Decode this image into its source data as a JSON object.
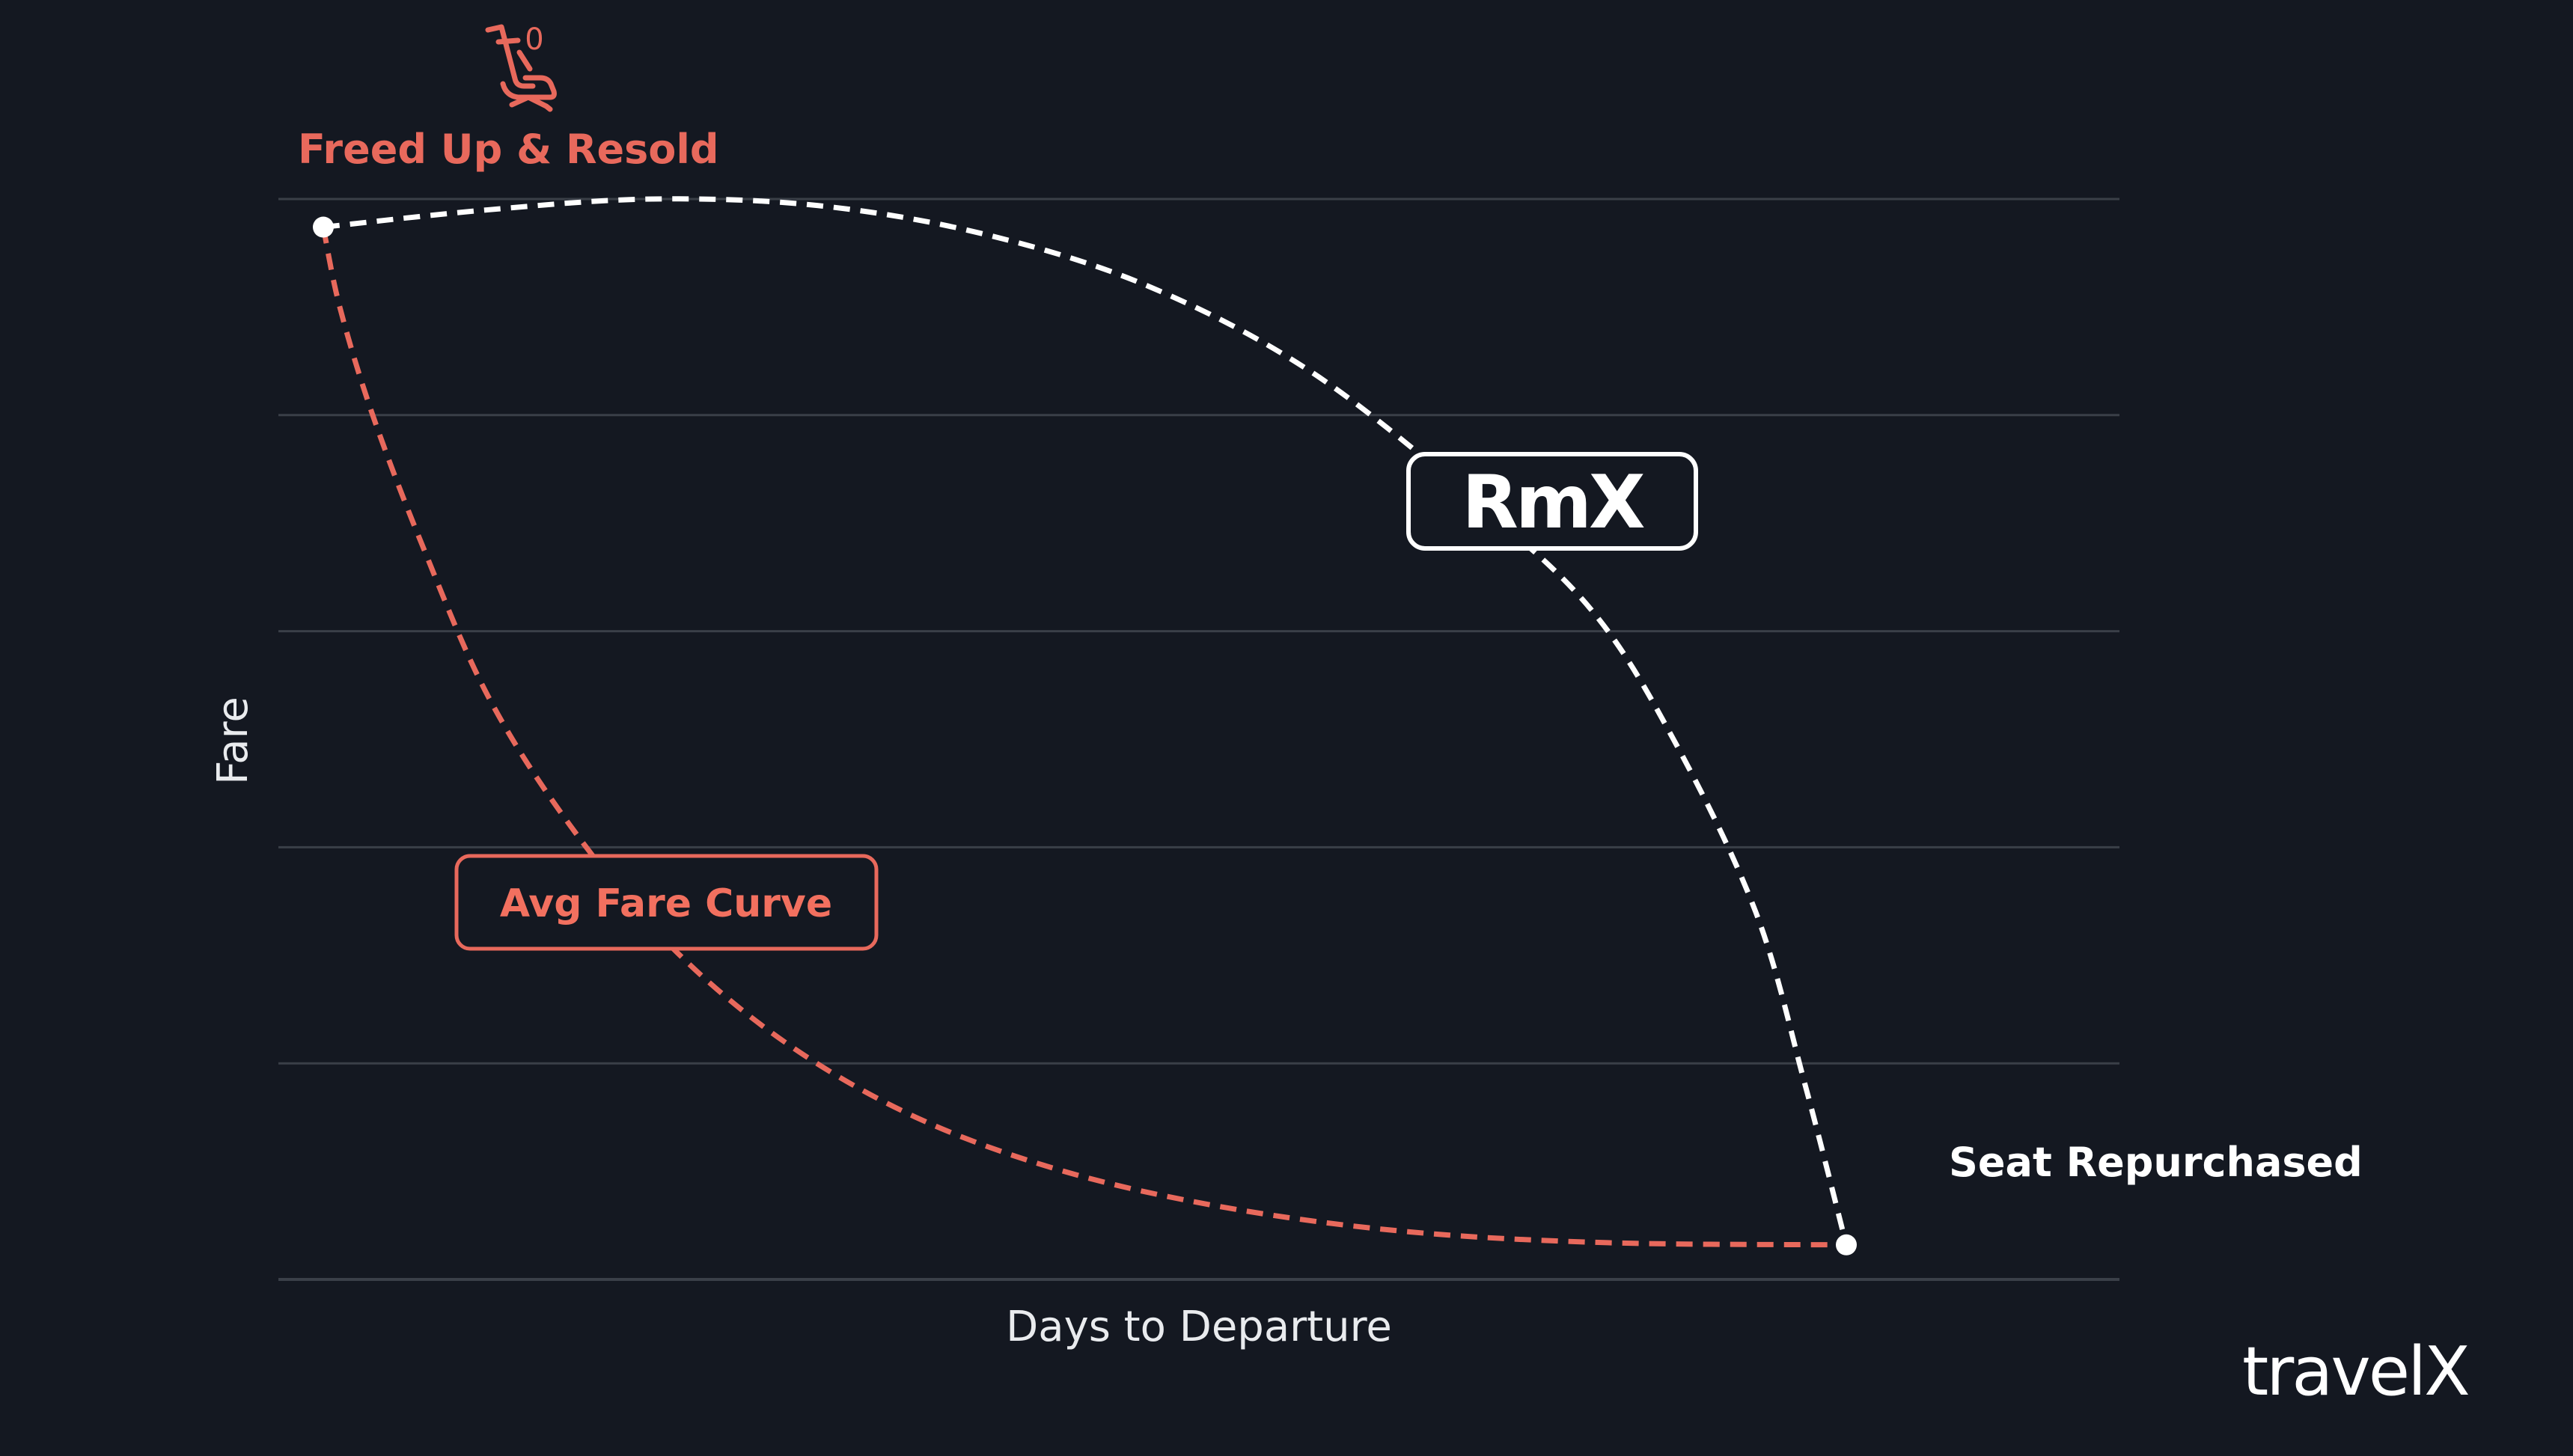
{
  "colors": {
    "background": "#141821",
    "grid": "#3a3f48",
    "accent_red": "#e8695c",
    "rmx_curve": "#ffffff"
  },
  "icons": {
    "seat": "airline-seat-icon"
  },
  "seat_badge_count": "0",
  "callouts": {
    "start": "Freed Up & Resold",
    "end": "Seat Repurchased"
  },
  "rmx_badge": {
    "label": "RmX"
  },
  "avg_label": "Avg Fare Curve",
  "logo": "travelX",
  "chart_data": {
    "type": "line",
    "xlabel": "Days to Departure",
    "ylabel": "Fare",
    "xlim": [
      0,
      10
    ],
    "ylim": [
      0,
      5
    ],
    "grid": true,
    "x_ticks_shown": false,
    "y_ticks_shown": false,
    "gridlines_y": [
      0,
      1,
      2,
      3,
      4,
      5
    ],
    "series": [
      {
        "name": "RmX",
        "color": "#ffffff",
        "style": "dashed",
        "x": [
          0,
          1,
          2,
          3,
          4,
          5,
          6,
          7,
          7.7,
          8.2,
          8.7,
          9.0,
          9.25
        ],
        "y": [
          4.87,
          4.95,
          5.0,
          4.97,
          4.84,
          4.6,
          4.2,
          3.6,
          3.1,
          2.5,
          1.7,
          0.9,
          0.16
        ]
      },
      {
        "name": "Avg Fare Curve",
        "color": "#e8695c",
        "style": "dashed",
        "x": [
          0,
          0.1,
          0.3,
          0.6,
          1.0,
          1.5,
          2.1,
          2.8,
          3.6,
          4.5,
          5.5,
          6.6,
          7.8,
          9.25
        ],
        "y": [
          4.87,
          4.5,
          4.0,
          3.4,
          2.7,
          2.1,
          1.55,
          1.1,
          0.75,
          0.5,
          0.33,
          0.22,
          0.17,
          0.16
        ]
      }
    ],
    "markers": [
      {
        "x": 0,
        "y": 4.87
      },
      {
        "x": 9.25,
        "y": 0.16
      }
    ]
  }
}
